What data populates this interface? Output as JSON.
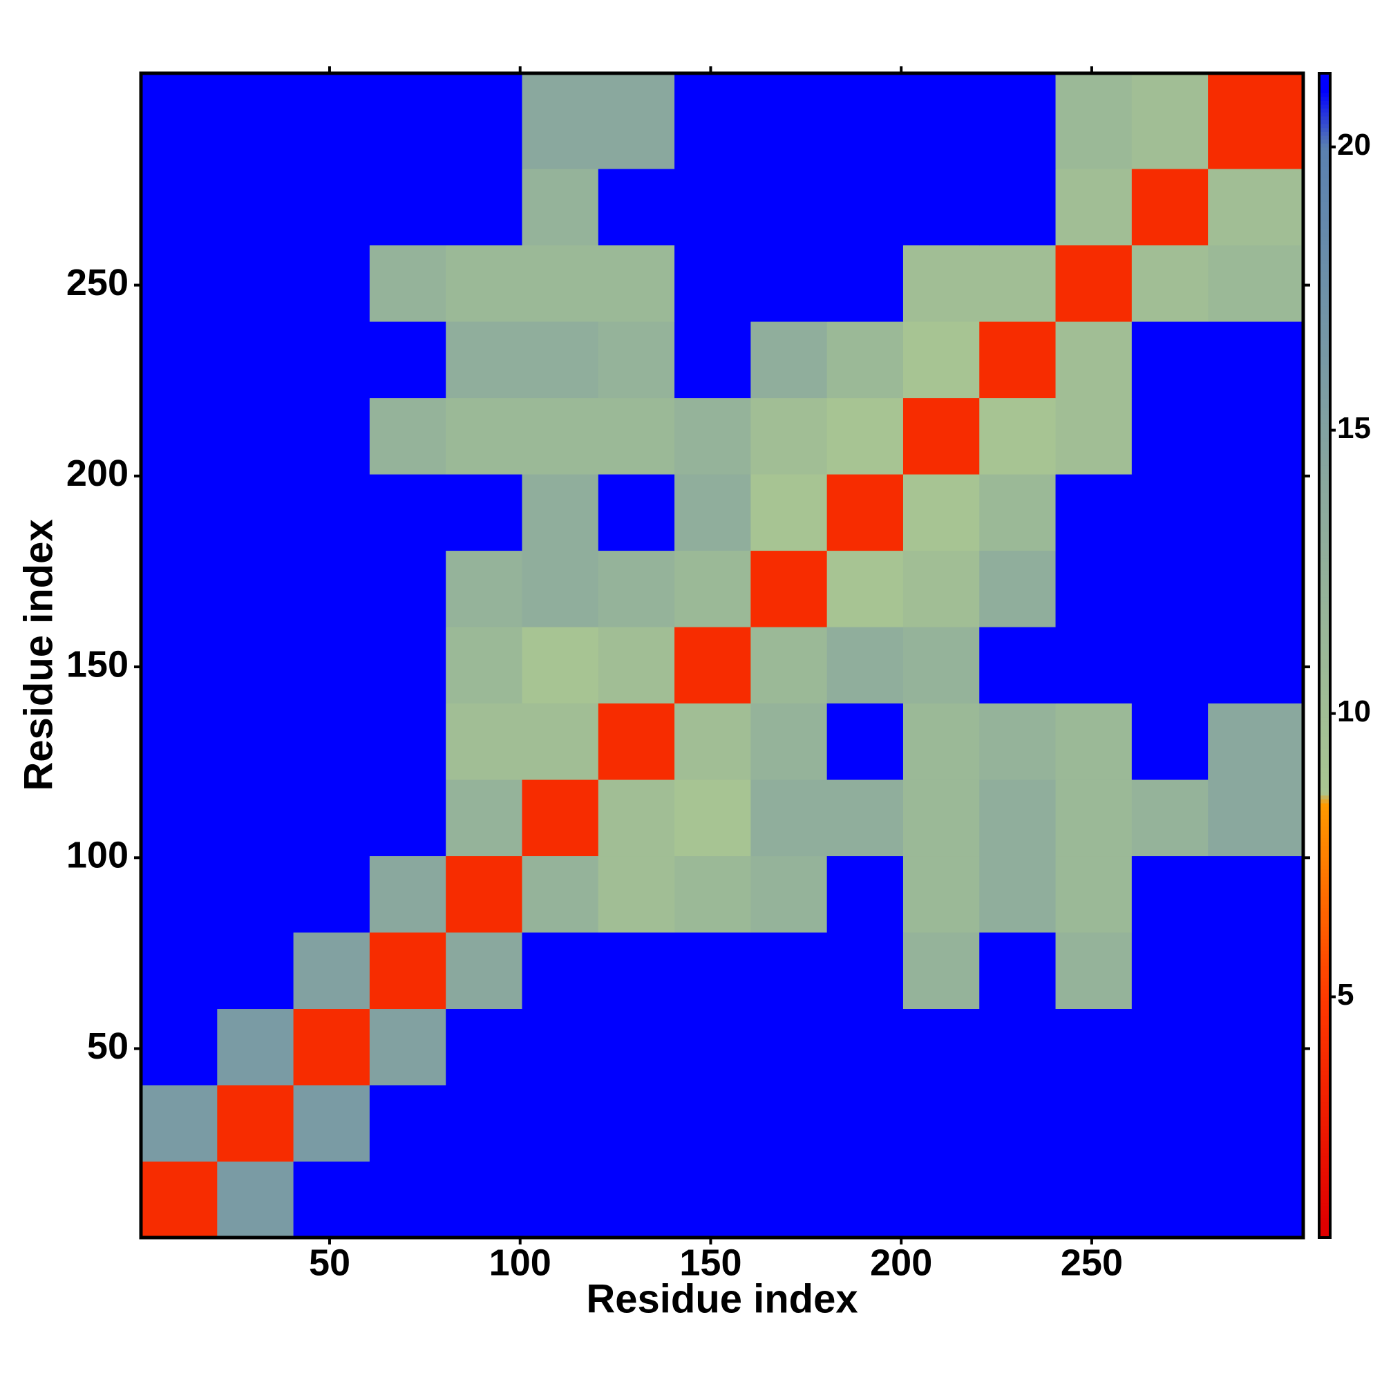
{
  "chart_data": {
    "type": "heatmap",
    "x_label": "Residue index",
    "y_label": "Residue index",
    "x_bins": [
      0.5,
      20.5,
      40.5,
      60.5,
      80.5,
      100.5,
      120.5,
      140.5,
      160.5,
      180.5,
      200.5,
      220.5,
      240.5,
      260.5,
      280.5,
      305.5
    ],
    "y_bins": [
      0.5,
      20.5,
      40.5,
      60.5,
      80.5,
      100.5,
      120.5,
      140.5,
      160.5,
      180.5,
      200.5,
      220.5,
      240.5,
      260.5,
      280.5,
      305.5
    ],
    "values": [
      [
        4,
        16,
        21,
        21,
        21,
        21,
        21,
        21,
        21,
        21,
        21,
        21,
        21,
        21,
        21
      ],
      [
        16,
        4,
        16,
        21,
        21,
        21,
        21,
        21,
        21,
        21,
        21,
        21,
        21,
        21,
        21
      ],
      [
        21,
        16,
        4,
        15,
        21,
        21,
        21,
        21,
        21,
        21,
        21,
        21,
        21,
        21,
        21
      ],
      [
        21,
        21,
        15,
        4,
        14,
        21,
        21,
        21,
        21,
        21,
        12,
        21,
        12,
        21,
        21
      ],
      [
        21,
        21,
        21,
        14,
        4,
        12,
        10,
        11,
        12,
        21,
        11,
        13,
        11,
        21,
        21
      ],
      [
        21,
        21,
        21,
        21,
        12,
        4,
        10,
        9,
        13,
        13,
        11,
        13,
        11,
        12,
        14
      ],
      [
        21,
        21,
        21,
        21,
        10,
        10,
        4,
        10,
        12,
        21,
        11,
        12,
        11,
        21,
        14
      ],
      [
        21,
        21,
        21,
        21,
        11,
        9,
        10,
        4,
        11,
        13,
        12,
        21,
        21,
        21,
        21
      ],
      [
        21,
        21,
        21,
        21,
        12,
        13,
        12,
        11,
        4,
        9,
        10,
        13,
        21,
        21,
        21
      ],
      [
        21,
        21,
        21,
        21,
        21,
        13,
        21,
        13,
        9,
        4,
        9,
        11,
        21,
        21,
        21
      ],
      [
        21,
        21,
        21,
        12,
        11,
        11,
        11,
        12,
        10,
        9,
        4,
        9,
        10,
        21,
        21
      ],
      [
        21,
        21,
        21,
        21,
        13,
        13,
        12,
        21,
        13,
        11,
        9,
        4,
        10,
        21,
        21
      ],
      [
        21,
        21,
        21,
        12,
        11,
        11,
        11,
        21,
        21,
        21,
        10,
        10,
        4,
        10,
        11
      ],
      [
        21,
        21,
        21,
        21,
        21,
        12,
        21,
        21,
        21,
        21,
        21,
        21,
        10,
        4,
        10
      ],
      [
        21,
        21,
        21,
        21,
        21,
        14,
        14,
        21,
        21,
        21,
        21,
        21,
        11,
        10,
        4
      ]
    ],
    "xlim": [
      0.5,
      305.5
    ],
    "ylim": [
      0.5,
      305.5
    ],
    "xticks": [
      50,
      100,
      150,
      200,
      250
    ],
    "yticks": [
      50,
      100,
      150,
      200,
      250
    ],
    "clim": [
      0.75,
      21.3
    ],
    "cticks": [
      5,
      10,
      15,
      20
    ],
    "colorscale": [
      {
        "value": 1,
        "color": "#e00000"
      },
      {
        "value": 5,
        "color": "#ff3a00"
      },
      {
        "value": 8.4,
        "color": "#ff9a00"
      },
      {
        "value": 8.6,
        "color": "#a9c692"
      },
      {
        "value": 14,
        "color": "#8aa89e"
      },
      {
        "value": 20,
        "color": "#5a80b0"
      },
      {
        "value": 21,
        "color": "#0000ff"
      }
    ]
  }
}
